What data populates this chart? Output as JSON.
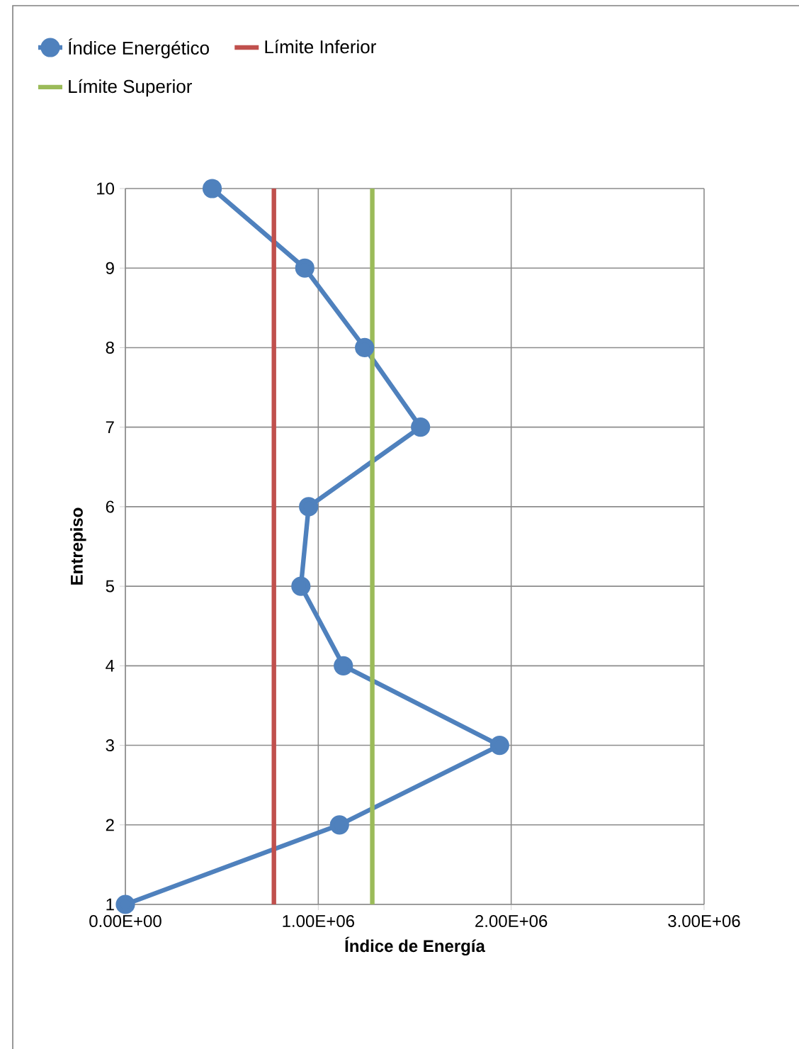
{
  "chart_data": {
    "type": "line",
    "xlabel": "Índice de Energía",
    "ylabel": "Entrepiso",
    "xlim": [
      0,
      3000000
    ],
    "ylim": [
      1,
      10
    ],
    "xticks": [
      {
        "value": 0,
        "label": "0.00E+00"
      },
      {
        "value": 1000000,
        "label": "1.00E+06"
      },
      {
        "value": 2000000,
        "label": "2.00E+06"
      },
      {
        "value": 3000000,
        "label": "3.00E+06"
      }
    ],
    "yticks": [
      1,
      2,
      3,
      4,
      5,
      6,
      7,
      8,
      9,
      10
    ],
    "grid": true,
    "legend": "top",
    "series": [
      {
        "name": "Índice Energético",
        "color": "#4f81bd",
        "marker": "circle",
        "x": [
          0,
          1110000,
          1940000,
          1130000,
          910000,
          950000,
          1530000,
          1240000,
          930000,
          450000
        ],
        "values": [
          1,
          2,
          3,
          4,
          5,
          6,
          7,
          8,
          9,
          10
        ]
      },
      {
        "name": "Límite Inferior",
        "color": "#c0504d",
        "marker": "none",
        "x": [
          770000,
          770000
        ],
        "values": [
          1,
          10
        ]
      },
      {
        "name": "Límite Superior",
        "color": "#9bbb59",
        "marker": "none",
        "x": [
          1280000,
          1280000
        ],
        "values": [
          1,
          10
        ]
      }
    ]
  }
}
